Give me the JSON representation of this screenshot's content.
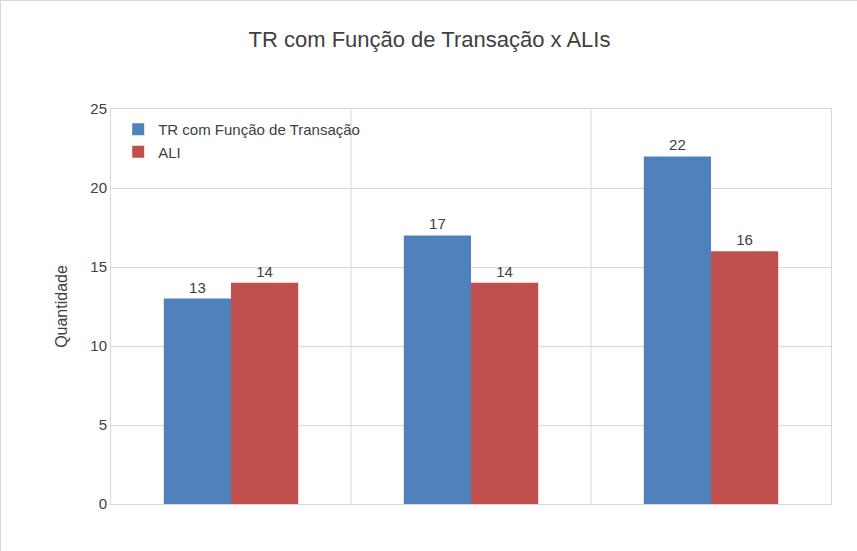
{
  "chart_data": {
    "type": "bar",
    "title": "TR com Função de Transação x ALIs",
    "y_label": "Quantidade",
    "categories": [
      null,
      null,
      null
    ],
    "series": [
      {
        "name": "TR com Função de Transação",
        "color": "#4f81bd",
        "values": [
          13,
          17,
          22
        ]
      },
      {
        "name": "ALI",
        "color": "#c0504d",
        "values": [
          14,
          14,
          16
        ]
      }
    ],
    "ylim": [
      0,
      25
    ],
    "yticks": [
      0,
      5,
      10,
      15,
      20,
      25
    ],
    "grid": true,
    "legend": "top left",
    "data_labels": true
  }
}
